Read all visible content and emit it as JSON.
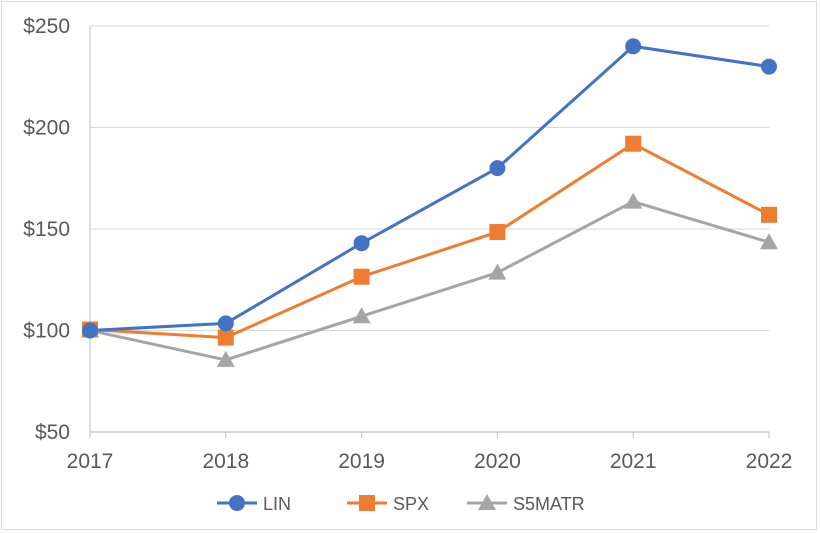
{
  "chart_data": {
    "type": "line",
    "title": "",
    "xlabel": "",
    "ylabel": "",
    "categories": [
      "2017",
      "2018",
      "2019",
      "2020",
      "2021",
      "2022"
    ],
    "ylim": [
      50,
      250
    ],
    "yticks": [
      50,
      100,
      150,
      200,
      250
    ],
    "ytick_labels": [
      "$50",
      "$100",
      "$150",
      "$200",
      "$250"
    ],
    "grid": true,
    "legend_position": "bottom",
    "series": [
      {
        "name": "LIN",
        "marker": "circle",
        "color": "#4472c4",
        "values": [
          100,
          103.5,
          143,
          180,
          240,
          230
        ]
      },
      {
        "name": "SPX",
        "marker": "square",
        "color": "#ed7d31",
        "values": [
          100.5,
          96.5,
          126.5,
          148.5,
          192,
          157
        ]
      },
      {
        "name": "S5MATR",
        "marker": "triangle",
        "color": "#a5a5a5",
        "values": [
          100,
          85.5,
          107,
          128.5,
          163.5,
          143.5
        ]
      }
    ]
  }
}
